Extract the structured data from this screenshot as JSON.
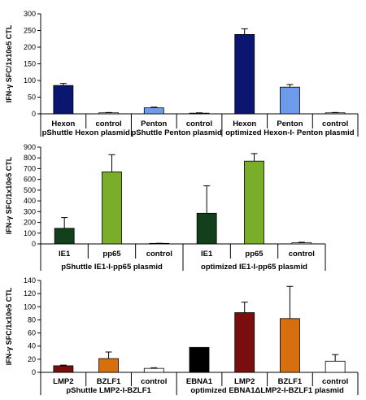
{
  "chart_data": [
    {
      "type": "bar",
      "ylabel": "IFN-γ SFC/1x10e5 CTL",
      "ylim": [
        0,
        300
      ],
      "yticks": [
        0,
        50,
        100,
        150,
        200,
        250,
        300
      ],
      "categories": [
        "Hexon",
        "control",
        "Penton",
        "control",
        "Hexon",
        "Penton",
        "control"
      ],
      "values": [
        85,
        3,
        18,
        2,
        238,
        80,
        3
      ],
      "errors": [
        6,
        1,
        2,
        1,
        17,
        8,
        1
      ],
      "colors": [
        "#0b1670",
        "#ffffff",
        "#6e9be9",
        "#ffffff",
        "#0b1670",
        "#6e9be9",
        "#ffffff"
      ],
      "groups": [
        {
          "label": "pShuttle Hexon plasmid",
          "span": [
            0,
            1
          ]
        },
        {
          "label": "pShuttle Penton plasmid",
          "span": [
            2,
            3
          ]
        },
        {
          "label": "optimized Hexon-I- Penton plasmid",
          "span": [
            4,
            6
          ]
        }
      ]
    },
    {
      "type": "bar",
      "ylabel": "IFN-γ SFC/1x10e5 CTL",
      "ylim": [
        0,
        900
      ],
      "yticks": [
        0,
        100,
        200,
        300,
        400,
        500,
        600,
        700,
        800,
        900
      ],
      "categories": [
        "IE1",
        "pp65",
        "control",
        "IE1",
        "pp65",
        "control"
      ],
      "values": [
        145,
        670,
        5,
        285,
        770,
        10
      ],
      "errors": [
        100,
        160,
        1,
        255,
        70,
        5
      ],
      "colors": [
        "#12401a",
        "#7aad2a",
        "#ffffff",
        "#12401a",
        "#7aad2a",
        "#ffffff"
      ],
      "groups": [
        {
          "label": "pShuttle IE1-I-pp65 plasmid",
          "span": [
            0,
            2
          ]
        },
        {
          "label": "optimized IE1-I-pp65 plasmid",
          "span": [
            3,
            5
          ]
        }
      ]
    },
    {
      "type": "bar",
      "ylabel": "IFN-γ SFC/1x10e5 CTL",
      "ylim": [
        0,
        140
      ],
      "yticks": [
        0,
        20,
        40,
        60,
        80,
        100,
        120,
        140
      ],
      "categories": [
        "LMP2",
        "BZLF1",
        "control",
        "EBNA1",
        "LMP2",
        "BZLF1",
        "control"
      ],
      "values": [
        10,
        21,
        6,
        38,
        91,
        82,
        17
      ],
      "errors": [
        1,
        10,
        1,
        0,
        16,
        49,
        10
      ],
      "colors": [
        "#7a0d0d",
        "#d6700f",
        "#ffffff",
        "#000000",
        "#7a0d0d",
        "#d6700f",
        "#ffffff"
      ],
      "groups": [
        {
          "label": "pShuttle LMP2-I-BZLF1",
          "span": [
            0,
            2
          ]
        },
        {
          "label": "optimized EBNA1ΔLMP2-I-BZLF1 plasmid",
          "span": [
            3,
            6
          ]
        }
      ]
    }
  ]
}
